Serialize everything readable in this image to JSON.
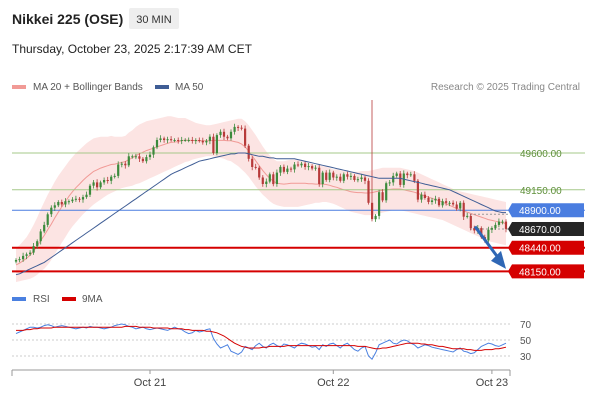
{
  "header": {
    "title": "Nikkei 225 (OSE)",
    "interval": "30 MIN",
    "timestamp": "Thursday, October 23, 2025 2:17:39 AM CET",
    "credit": "Research © 2025 Trading Central"
  },
  "colors": {
    "bollinger": "#f19a96",
    "ma50": "#3f5d95",
    "band_fill": "#fce4e3",
    "candle_up": "#3c8a3c",
    "candle_down": "#b73a3a",
    "resistance": "#a6c98a",
    "pivot": "#4a7de0",
    "support": "#d50000",
    "last_price": "#262626",
    "arrow": "#2f67b5",
    "rsi": "#4a80e0",
    "rsi_ma": "#d50000"
  },
  "chart_data": [
    {
      "type": "candlestick",
      "name": "price",
      "legend": [
        "MA 20 + Bollinger Bands",
        "MA 50"
      ],
      "ylim": [
        48020,
        50250
      ],
      "x_ticks": [
        "Oct 21",
        "Oct 22",
        "Oct 23"
      ],
      "levels": [
        {
          "value": 49600,
          "label": "49600.00",
          "style": "resistance"
        },
        {
          "value": 49150,
          "label": "49150.00",
          "style": "resistance"
        },
        {
          "value": 48900,
          "label": "48900.00",
          "style": "pivot"
        },
        {
          "value": 48670,
          "label": "48670.00",
          "style": "last"
        },
        {
          "value": 48440,
          "label": "48440.00",
          "style": "support"
        },
        {
          "value": 48150,
          "label": "48150.00",
          "style": "support"
        }
      ],
      "close": [
        48290,
        48300,
        48340,
        48360,
        48380,
        48460,
        48520,
        48640,
        48720,
        48850,
        48930,
        48960,
        49000,
        48970,
        49010,
        49010,
        49030,
        49040,
        49030,
        49060,
        49090,
        49200,
        49240,
        49180,
        49240,
        49270,
        49260,
        49310,
        49320,
        49460,
        49470,
        49450,
        49560,
        49560,
        49560,
        49530,
        49500,
        49550,
        49580,
        49670,
        49760,
        49780,
        49760,
        49770,
        49760,
        49760,
        49750,
        49760,
        49760,
        49760,
        49750,
        49760,
        49750,
        49730,
        49750,
        49800,
        49600,
        49820,
        49860,
        49800,
        49780,
        49860,
        49920,
        49910,
        49900,
        49690,
        49530,
        49430,
        49420,
        49300,
        49220,
        49250,
        49340,
        49220,
        49360,
        49430,
        49370,
        49410,
        49400,
        49460,
        49450,
        49470,
        49430,
        49440,
        49410,
        49420,
        49220,
        49360,
        49270,
        49360,
        49300,
        49310,
        49260,
        49340,
        49310,
        49320,
        49270,
        49280,
        49300,
        49260,
        48990,
        48790,
        48830,
        49120,
        49020,
        49230,
        49240,
        49320,
        49350,
        49210,
        49350,
        49330,
        49340,
        49260,
        49030,
        49090,
        49050,
        49000,
        49020,
        49040,
        48960,
        49010,
        48990,
        48990,
        48970,
        48920,
        48990,
        48820,
        48830,
        48680,
        48650,
        48680,
        48570,
        48530,
        48660,
        48680,
        48720,
        48760,
        48760,
        48670
      ],
      "band_upper": [
        48440,
        48470,
        48520,
        48570,
        48640,
        48720,
        48810,
        48910,
        49000,
        49090,
        49170,
        49250,
        49320,
        49380,
        49440,
        49500,
        49550,
        49600,
        49640,
        49680,
        49720,
        49750,
        49780,
        49790,
        49800,
        49800,
        49800,
        49810,
        49800,
        49800,
        49800,
        49810,
        49850,
        49880,
        49920,
        49950,
        49970,
        49990,
        50000,
        50010,
        50020,
        50030,
        50040,
        50050,
        50050,
        50040,
        50030,
        50030,
        50030,
        50010,
        49990,
        49970,
        49960,
        49950,
        49940,
        49940,
        49950,
        49960,
        49970,
        49980,
        49990,
        50000,
        50010,
        50020,
        50020,
        49990,
        49940,
        49880,
        49820,
        49750,
        49680,
        49620,
        49570,
        49530,
        49500,
        49500,
        49500,
        49510,
        49520,
        49520,
        49520,
        49510,
        49500,
        49480,
        49470,
        49450,
        49450,
        49440,
        49430,
        49420,
        49400,
        49400,
        49390,
        49380,
        49380,
        49370,
        49370,
        49370,
        49380,
        49380,
        49380,
        49390,
        49400,
        49410,
        49420,
        49420,
        49420,
        49420,
        49420,
        49420,
        49410,
        49400,
        49390,
        49380,
        49360,
        49340,
        49320,
        49300,
        49280,
        49260,
        49240,
        49220,
        49200,
        49180,
        49160,
        49140,
        49130,
        49120,
        49110,
        49100,
        49090,
        49080,
        49070,
        49060,
        49050,
        49040,
        49030,
        49020,
        49010,
        49000
      ],
      "band_lower": [
        48020,
        48030,
        48040,
        48050,
        48060,
        48080,
        48110,
        48150,
        48180,
        48230,
        48290,
        48360,
        48430,
        48500,
        48570,
        48640,
        48700,
        48750,
        48800,
        48850,
        48890,
        48930,
        48970,
        49000,
        49030,
        49060,
        49090,
        49110,
        49130,
        49150,
        49170,
        49180,
        49190,
        49200,
        49220,
        49230,
        49250,
        49270,
        49290,
        49310,
        49330,
        49350,
        49370,
        49390,
        49410,
        49430,
        49450,
        49470,
        49490,
        49500,
        49520,
        49530,
        49540,
        49550,
        49560,
        49560,
        49560,
        49550,
        49540,
        49530,
        49510,
        49500,
        49470,
        49440,
        49400,
        49360,
        49310,
        49250,
        49190,
        49140,
        49090,
        49050,
        49010,
        48980,
        48960,
        48950,
        48940,
        48940,
        48940,
        48940,
        48940,
        48950,
        48960,
        48970,
        48980,
        48990,
        48990,
        49000,
        49000,
        48990,
        48980,
        48960,
        48940,
        48920,
        48900,
        48880,
        48870,
        48860,
        48850,
        48840,
        48840,
        48840,
        48850,
        48860,
        48870,
        48880,
        48890,
        48900,
        48900,
        48900,
        48890,
        48880,
        48870,
        48860,
        48850,
        48840,
        48830,
        48820,
        48810,
        48800,
        48790,
        48780,
        48760,
        48740,
        48720,
        48700,
        48680,
        48660,
        48640,
        48620,
        48600,
        48580,
        48560,
        48540,
        48520,
        48510,
        48500,
        48490,
        48480,
        48470
      ],
      "ma50": [
        48110,
        48120,
        48140,
        48160,
        48180,
        48200,
        48220,
        48240,
        48260,
        48290,
        48320,
        48350,
        48380,
        48410,
        48440,
        48470,
        48500,
        48530,
        48560,
        48590,
        48620,
        48650,
        48680,
        48710,
        48740,
        48770,
        48800,
        48830,
        48860,
        48890,
        48920,
        48950,
        48980,
        49010,
        49040,
        49070,
        49100,
        49130,
        49160,
        49190,
        49220,
        49250,
        49280,
        49310,
        49340,
        49360,
        49380,
        49400,
        49420,
        49440,
        49460,
        49480,
        49500,
        49510,
        49520,
        49530,
        49540,
        49550,
        49560,
        49570,
        49580,
        49590,
        49590,
        49600,
        49600,
        49600,
        49590,
        49580,
        49570,
        49560,
        49560,
        49550,
        49540,
        49540,
        49530,
        49530,
        49530,
        49530,
        49530,
        49530,
        49520,
        49510,
        49500,
        49490,
        49480,
        49470,
        49460,
        49450,
        49440,
        49430,
        49420,
        49410,
        49400,
        49390,
        49380,
        49370,
        49360,
        49350,
        49340,
        49330,
        49320,
        49310,
        49300,
        49290,
        49290,
        49290,
        49290,
        49290,
        49290,
        49290,
        49280,
        49270,
        49260,
        49250,
        49240,
        49230,
        49220,
        49210,
        49200,
        49190,
        49180,
        49170,
        49160,
        49150,
        49130,
        49110,
        49090,
        49070,
        49050,
        49030,
        49010,
        48990,
        48970,
        48950,
        48930,
        48910,
        48890,
        48880,
        48870,
        48870
      ]
    },
    {
      "type": "line",
      "name": "rsi",
      "legend": [
        "RSI",
        "9MA"
      ],
      "ylim": [
        15,
        85
      ],
      "y_ticks": [
        70,
        50,
        30
      ],
      "rsi": [
        58,
        60,
        62,
        64,
        66,
        66,
        65,
        66,
        68,
        69,
        68,
        66,
        67,
        68,
        67,
        66,
        65,
        64,
        65,
        66,
        65,
        67,
        66,
        66,
        65,
        64,
        65,
        66,
        68,
        69,
        70,
        69,
        67,
        66,
        64,
        65,
        66,
        64,
        63,
        64,
        65,
        64,
        63,
        62,
        64,
        66,
        64,
        63,
        60,
        58,
        59,
        62,
        60,
        61,
        63,
        64,
        52,
        45,
        40,
        42,
        44,
        36,
        34,
        32,
        35,
        42,
        40,
        38,
        43,
        46,
        42,
        40,
        44,
        46,
        43,
        41,
        45,
        44,
        42,
        40,
        44,
        46,
        45,
        43,
        41,
        42,
        38,
        44,
        42,
        45,
        46,
        43,
        40,
        44,
        46,
        42,
        38,
        36,
        40,
        42,
        30,
        26,
        34,
        44,
        46,
        48,
        50,
        46,
        45,
        48,
        50,
        49,
        46,
        44,
        40,
        42,
        44,
        43,
        41,
        40,
        39,
        38,
        37,
        36,
        35,
        38,
        40,
        36,
        35,
        33,
        34,
        38,
        42,
        44,
        46,
        45,
        43,
        42,
        44,
        46
      ],
      "ma9": [
        62,
        62,
        62,
        63,
        63,
        64,
        64,
        65,
        65,
        65,
        65,
        66,
        66,
        66,
        66,
        66,
        66,
        66,
        66,
        66,
        66,
        66,
        66,
        66,
        66,
        66,
        66,
        66,
        66,
        66,
        66,
        67,
        67,
        67,
        67,
        66,
        66,
        66,
        66,
        65,
        65,
        65,
        65,
        65,
        64,
        64,
        64,
        64,
        63,
        63,
        62,
        62,
        62,
        62,
        61,
        61,
        60,
        59,
        57,
        55,
        52,
        49,
        46,
        44,
        42,
        41,
        40,
        40,
        40,
        40,
        41,
        41,
        42,
        42,
        42,
        42,
        42,
        43,
        43,
        43,
        43,
        43,
        43,
        43,
        43,
        43,
        43,
        43,
        43,
        43,
        43,
        43,
        43,
        43,
        43,
        43,
        43,
        42,
        42,
        42,
        41,
        40,
        39,
        39,
        40,
        40,
        41,
        42,
        43,
        44,
        45,
        46,
        46,
        46,
        46,
        45,
        45,
        44,
        44,
        43,
        42,
        42,
        41,
        40,
        39,
        39,
        39,
        39,
        38,
        38,
        37,
        37,
        37,
        38,
        38,
        38,
        39,
        39,
        40,
        41
      ]
    }
  ]
}
